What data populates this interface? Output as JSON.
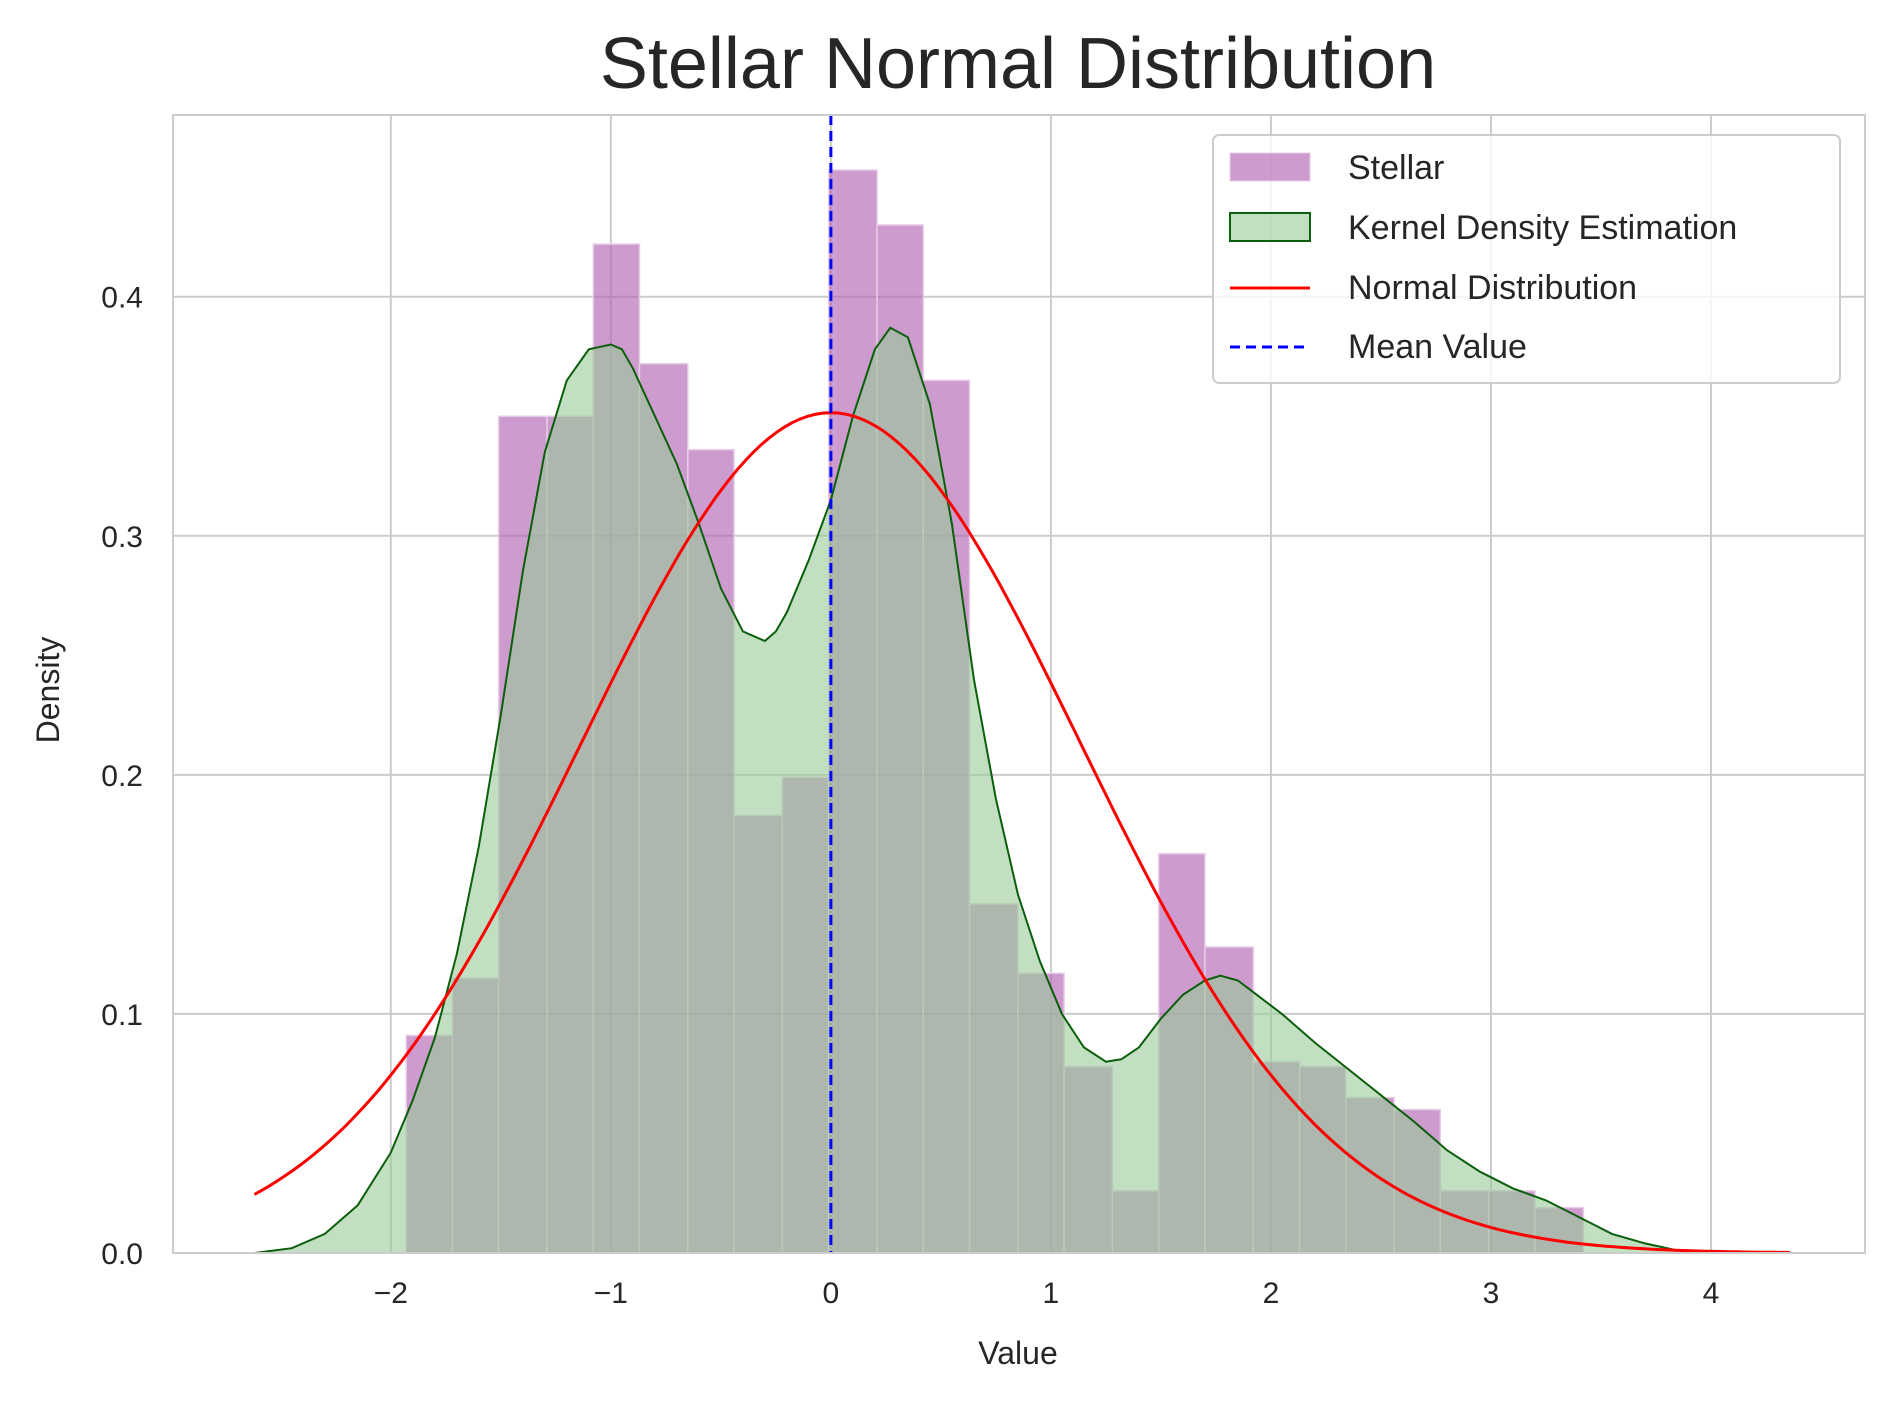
{
  "chart_data": {
    "type": "histogram",
    "title": "Stellar Normal Distribution",
    "xlabel": "Value",
    "ylabel": "Density",
    "xlim": [
      -2.99,
      4.7
    ],
    "ylim": [
      0,
      0.476
    ],
    "x_ticks": [
      -2,
      -1,
      0,
      1,
      2,
      3,
      4
    ],
    "x_tick_labels": [
      "−2",
      "−1",
      "0",
      "1",
      "2",
      "3",
      "4"
    ],
    "y_ticks": [
      0.0,
      0.1,
      0.2,
      0.3,
      0.4
    ],
    "y_tick_labels": [
      "0.0",
      "0.1",
      "0.2",
      "0.3",
      "0.4"
    ],
    "grid": true,
    "legend_position": "top-right",
    "histogram": {
      "name": "Stellar",
      "color": "#b266b2",
      "bins": [
        {
          "x0": -1.93,
          "x1": -1.72,
          "density": 0.091
        },
        {
          "x0": -1.72,
          "x1": -1.51,
          "density": 0.115
        },
        {
          "x0": -1.51,
          "x1": -1.29,
          "density": 0.35
        },
        {
          "x0": -1.29,
          "x1": -1.08,
          "density": 0.35
        },
        {
          "x0": -1.08,
          "x1": -0.87,
          "density": 0.422
        },
        {
          "x0": -0.87,
          "x1": -0.65,
          "density": 0.372
        },
        {
          "x0": -0.65,
          "x1": -0.44,
          "density": 0.336
        },
        {
          "x0": -0.44,
          "x1": -0.22,
          "density": 0.183
        },
        {
          "x0": -0.22,
          "x1": -0.01,
          "density": 0.199
        },
        {
          "x0": -0.01,
          "x1": 0.21,
          "density": 0.453
        },
        {
          "x0": 0.21,
          "x1": 0.42,
          "density": 0.43
        },
        {
          "x0": 0.42,
          "x1": 0.63,
          "density": 0.365
        },
        {
          "x0": 0.63,
          "x1": 0.85,
          "density": 0.146
        },
        {
          "x0": 0.85,
          "x1": 1.06,
          "density": 0.117
        },
        {
          "x0": 1.06,
          "x1": 1.28,
          "density": 0.078
        },
        {
          "x0": 1.28,
          "x1": 1.49,
          "density": 0.026
        },
        {
          "x0": 1.49,
          "x1": 1.7,
          "density": 0.167
        },
        {
          "x0": 1.7,
          "x1": 1.92,
          "density": 0.128
        },
        {
          "x0": 1.92,
          "x1": 2.13,
          "density": 0.08
        },
        {
          "x0": 2.13,
          "x1": 2.34,
          "density": 0.078
        },
        {
          "x0": 2.34,
          "x1": 2.56,
          "density": 0.065
        },
        {
          "x0": 2.56,
          "x1": 2.77,
          "density": 0.06
        },
        {
          "x0": 2.77,
          "x1": 2.99,
          "density": 0.026
        },
        {
          "x0": 2.99,
          "x1": 3.2,
          "density": 0.026
        },
        {
          "x0": 3.2,
          "x1": 3.42,
          "density": 0.019
        }
      ]
    },
    "kde": {
      "name": "Kernel Density Estimation",
      "line_color": "#0b5e0b",
      "fill_color": "#9ac99a",
      "x": [
        -2.62,
        -2.45,
        -2.3,
        -2.15,
        -2.0,
        -1.9,
        -1.8,
        -1.7,
        -1.6,
        -1.5,
        -1.4,
        -1.3,
        -1.2,
        -1.1,
        -1.0,
        -0.95,
        -0.9,
        -0.8,
        -0.7,
        -0.6,
        -0.5,
        -0.4,
        -0.3,
        -0.25,
        -0.2,
        -0.1,
        0.0,
        0.1,
        0.2,
        0.27,
        0.35,
        0.45,
        0.55,
        0.65,
        0.75,
        0.85,
        0.95,
        1.05,
        1.15,
        1.25,
        1.32,
        1.4,
        1.5,
        1.6,
        1.7,
        1.77,
        1.85,
        1.95,
        2.05,
        2.2,
        2.35,
        2.5,
        2.65,
        2.8,
        2.95,
        3.1,
        3.25,
        3.4,
        3.55,
        3.7,
        3.85,
        4.0,
        4.1
      ],
      "y": [
        0.0,
        0.002,
        0.008,
        0.02,
        0.042,
        0.064,
        0.09,
        0.125,
        0.17,
        0.225,
        0.285,
        0.335,
        0.365,
        0.378,
        0.38,
        0.378,
        0.37,
        0.35,
        0.33,
        0.305,
        0.278,
        0.26,
        0.256,
        0.26,
        0.268,
        0.29,
        0.315,
        0.35,
        0.378,
        0.387,
        0.383,
        0.355,
        0.305,
        0.24,
        0.19,
        0.15,
        0.122,
        0.1,
        0.086,
        0.08,
        0.081,
        0.086,
        0.098,
        0.108,
        0.114,
        0.116,
        0.114,
        0.107,
        0.1,
        0.088,
        0.077,
        0.066,
        0.055,
        0.043,
        0.034,
        0.027,
        0.022,
        0.015,
        0.008,
        0.004,
        0.001,
        0.0,
        0.0
      ]
    },
    "normal": {
      "name": "Normal Distribution",
      "color": "#ff0000",
      "mean": 0.0,
      "std": 1.135,
      "x_range": [
        -2.62,
        4.36
      ]
    },
    "mean_line": {
      "name": "Mean Value",
      "color": "#0000ff",
      "x": 0.0
    }
  }
}
